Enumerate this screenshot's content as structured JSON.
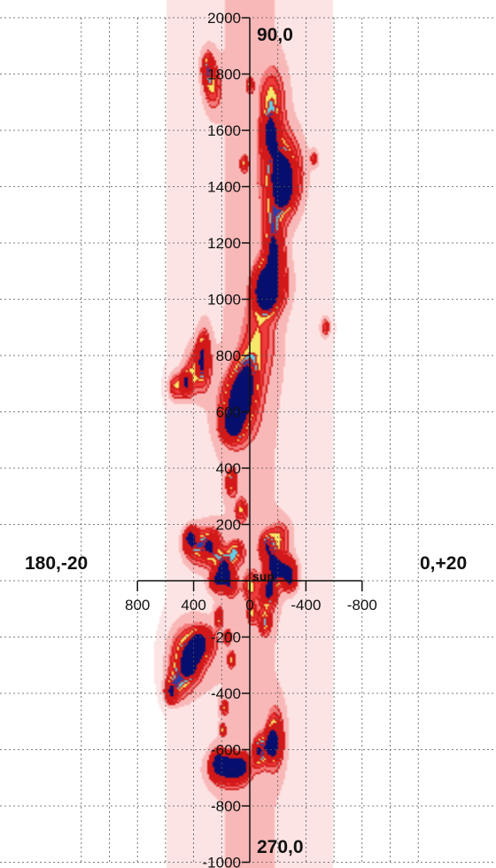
{
  "chart_data": {
    "type": "heatmap",
    "xlim": [
      800,
      -800
    ],
    "ylim": [
      -1000,
      2000
    ],
    "x_ticks": [
      800,
      400,
      0,
      -400,
      -800
    ],
    "y_ticks": [
      -1000,
      -800,
      -600,
      -400,
      -200,
      200,
      400,
      600,
      800,
      1000,
      1200,
      1400,
      1600,
      1800,
      2000
    ],
    "x_tick_labels": [
      "800",
      "400",
      "0",
      "-400",
      "-800"
    ],
    "y_tick_labels": [
      "-1000",
      "-800",
      "-600",
      "-400",
      "-200",
      "200",
      "400",
      "600",
      "800",
      "1000",
      "1200",
      "1400",
      "1600",
      "1800",
      "2000"
    ],
    "grid": true,
    "annotations": {
      "top": "90,0",
      "bottom": "270,0",
      "left": "180,-20",
      "right": "0,+20",
      "center": "sun"
    },
    "colormap": [
      "#fde4e4",
      "#f9b8b8",
      "#f47a7a",
      "#ee3c3c",
      "#f6e86a",
      "#63cfe2",
      "#2c3fa8",
      "#070f6e"
    ],
    "contour_color": "#d21818",
    "peaks": [
      {
        "x": -120,
        "y": 1020,
        "v": 1.0,
        "sx": 55,
        "sy": 45
      },
      {
        "x": -150,
        "y": 1060,
        "v": 0.95,
        "sx": 70,
        "sy": 60
      },
      {
        "x": -250,
        "y": 1400,
        "v": 1.0,
        "sx": 45,
        "sy": 50
      },
      {
        "x": -230,
        "y": 1450,
        "v": 0.85,
        "sx": 90,
        "sy": 90
      },
      {
        "x": -150,
        "y": 1580,
        "v": 0.8,
        "sx": 40,
        "sy": 45
      },
      {
        "x": -180,
        "y": 1160,
        "v": 0.7,
        "sx": 35,
        "sy": 40
      },
      {
        "x": -170,
        "y": 1250,
        "v": 0.55,
        "sx": 50,
        "sy": 70
      },
      {
        "x": -160,
        "y": 1700,
        "v": 0.5,
        "sx": 60,
        "sy": 80
      },
      {
        "x": 60,
        "y": 650,
        "v": 0.95,
        "sx": 45,
        "sy": 40
      },
      {
        "x": 120,
        "y": 550,
        "v": 0.95,
        "sx": 50,
        "sy": 35
      },
      {
        "x": 80,
        "y": 620,
        "v": 0.7,
        "sx": 90,
        "sy": 80
      },
      {
        "x": 20,
        "y": 720,
        "v": 0.55,
        "sx": 60,
        "sy": 60
      },
      {
        "x": -60,
        "y": 850,
        "v": 0.4,
        "sx": 80,
        "sy": 100
      },
      {
        "x": 450,
        "y": 700,
        "v": 0.8,
        "sx": 30,
        "sy": 30
      },
      {
        "x": 330,
        "y": 800,
        "v": 0.7,
        "sx": 30,
        "sy": 60
      },
      {
        "x": 380,
        "y": 750,
        "v": 0.45,
        "sx": 60,
        "sy": 60
      },
      {
        "x": 530,
        "y": 690,
        "v": 0.5,
        "sx": 35,
        "sy": 35
      },
      {
        "x": 130,
        "y": 350,
        "v": 0.65,
        "sx": 25,
        "sy": 30
      },
      {
        "x": 60,
        "y": 250,
        "v": 0.45,
        "sx": 30,
        "sy": 30
      },
      {
        "x": 420,
        "y": 150,
        "v": 0.9,
        "sx": 30,
        "sy": 25
      },
      {
        "x": 370,
        "y": 120,
        "v": 0.55,
        "sx": 70,
        "sy": 45
      },
      {
        "x": 270,
        "y": 120,
        "v": 0.65,
        "sx": 45,
        "sy": 40
      },
      {
        "x": 180,
        "y": 60,
        "v": 0.6,
        "sx": 40,
        "sy": 30
      },
      {
        "x": 220,
        "y": 0,
        "v": 0.95,
        "sx": 40,
        "sy": 25
      },
      {
        "x": 170,
        "y": 20,
        "v": 0.8,
        "sx": 35,
        "sy": 25
      },
      {
        "x": 100,
        "y": 100,
        "v": 0.55,
        "sx": 40,
        "sy": 30
      },
      {
        "x": 130,
        "y": -20,
        "v": 0.55,
        "sx": 30,
        "sy": 25
      },
      {
        "x": -180,
        "y": 50,
        "v": 0.95,
        "sx": 40,
        "sy": 35
      },
      {
        "x": -260,
        "y": 30,
        "v": 0.8,
        "sx": 45,
        "sy": 35
      },
      {
        "x": -290,
        "y": 10,
        "v": 0.9,
        "sx": 25,
        "sy": 25
      },
      {
        "x": -120,
        "y": 120,
        "v": 0.65,
        "sx": 35,
        "sy": 35
      },
      {
        "x": -210,
        "y": 150,
        "v": 0.45,
        "sx": 50,
        "sy": 40
      },
      {
        "x": -150,
        "y": -30,
        "v": 0.55,
        "sx": 30,
        "sy": 25
      },
      {
        "x": -110,
        "y": -150,
        "v": 0.55,
        "sx": 30,
        "sy": 30
      },
      {
        "x": -20,
        "y": -120,
        "v": 0.45,
        "sx": 25,
        "sy": 25
      },
      {
        "x": 420,
        "y": -290,
        "v": 0.95,
        "sx": 35,
        "sy": 35
      },
      {
        "x": 370,
        "y": -240,
        "v": 0.95,
        "sx": 30,
        "sy": 30
      },
      {
        "x": 440,
        "y": -260,
        "v": 0.7,
        "sx": 90,
        "sy": 70
      },
      {
        "x": 320,
        "y": -220,
        "v": 0.6,
        "sx": 50,
        "sy": 35
      },
      {
        "x": 560,
        "y": -400,
        "v": 0.75,
        "sx": 30,
        "sy": 25
      },
      {
        "x": 510,
        "y": -360,
        "v": 0.5,
        "sx": 60,
        "sy": 45
      },
      {
        "x": 220,
        "y": -130,
        "v": 0.55,
        "sx": 20,
        "sy": 25
      },
      {
        "x": 160,
        "y": -200,
        "v": 0.45,
        "sx": 20,
        "sy": 20
      },
      {
        "x": 130,
        "y": -280,
        "v": 0.5,
        "sx": 20,
        "sy": 20
      },
      {
        "x": 180,
        "y": -450,
        "v": 0.45,
        "sx": 20,
        "sy": 20
      },
      {
        "x": 190,
        "y": -530,
        "v": 0.55,
        "sx": 15,
        "sy": 15
      },
      {
        "x": 230,
        "y": -650,
        "v": 0.85,
        "sx": 30,
        "sy": 30
      },
      {
        "x": 170,
        "y": -660,
        "v": 0.95,
        "sx": 30,
        "sy": 25
      },
      {
        "x": 100,
        "y": -670,
        "v": 0.95,
        "sx": 30,
        "sy": 25
      },
      {
        "x": 40,
        "y": -660,
        "v": 0.8,
        "sx": 25,
        "sy": 25
      },
      {
        "x": 140,
        "y": -670,
        "v": 0.7,
        "sx": 90,
        "sy": 40
      },
      {
        "x": -60,
        "y": -610,
        "v": 0.55,
        "sx": 25,
        "sy": 35
      },
      {
        "x": -170,
        "y": -580,
        "v": 0.9,
        "sx": 30,
        "sy": 30
      },
      {
        "x": -180,
        "y": -560,
        "v": 0.6,
        "sx": 40,
        "sy": 70
      },
      {
        "x": -110,
        "y": -600,
        "v": 0.45,
        "sx": 40,
        "sy": 40
      },
      {
        "x": -130,
        "y": -50,
        "v": 0.6,
        "sx": 40,
        "sy": 40
      },
      {
        "x": -10,
        "y": -20,
        "v": 0.45,
        "sx": 40,
        "sy": 40
      },
      {
        "x": 300,
        "y": 1820,
        "v": 0.6,
        "sx": 30,
        "sy": 40
      },
      {
        "x": 260,
        "y": 1750,
        "v": 0.45,
        "sx": 40,
        "sy": 50
      },
      {
        "x": 40,
        "y": 1480,
        "v": 0.45,
        "sx": 20,
        "sy": 20
      },
      {
        "x": -460,
        "y": 1500,
        "v": 0.4,
        "sx": 20,
        "sy": 20
      },
      {
        "x": -540,
        "y": 900,
        "v": 0.45,
        "sx": 25,
        "sy": 25
      },
      {
        "x": 0,
        "y": 1760,
        "v": 0.4,
        "sx": 20,
        "sy": 20
      }
    ]
  }
}
